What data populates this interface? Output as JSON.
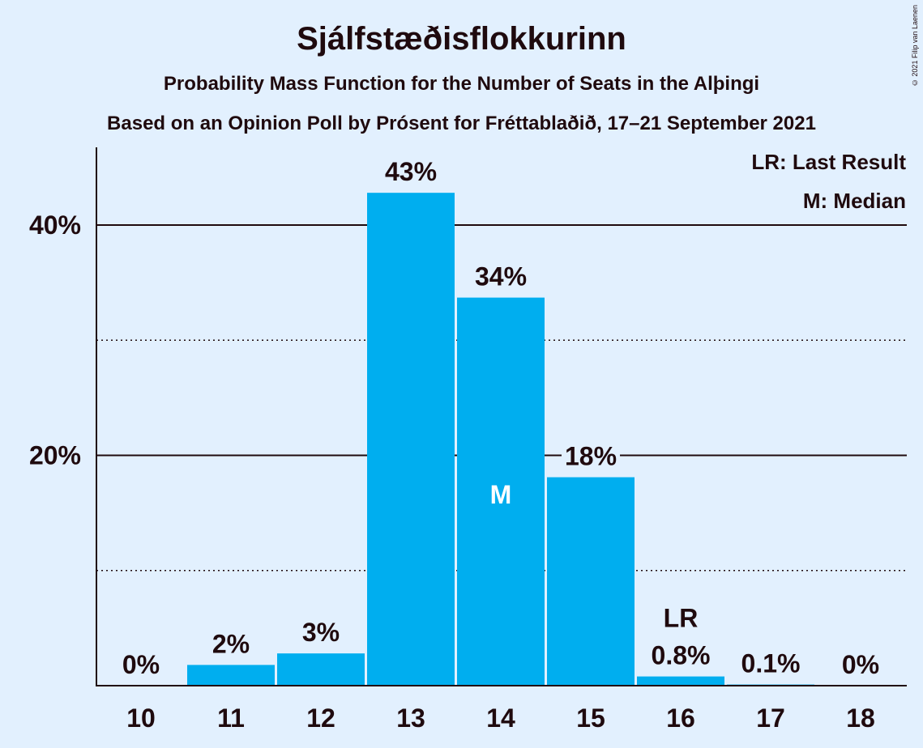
{
  "chart_data": {
    "type": "bar",
    "title": "Sjálfstæðisflokkurinn",
    "subtitle": "Probability Mass Function for the Number of Seats in the Alþingi",
    "subtitle2": "Based on an Opinion Poll by Prósent for Fréttablaðið, 17–21 September 2021",
    "copyright": "© 2021 Filip van Laenen",
    "categories": [
      "10",
      "11",
      "12",
      "13",
      "14",
      "15",
      "16",
      "17",
      "18"
    ],
    "values": [
      0,
      1.8,
      2.8,
      42.8,
      33.7,
      18.1,
      0.8,
      0.1,
      0
    ],
    "value_labels": [
      "0%",
      "2%",
      "3%",
      "43%",
      "34%",
      "18%",
      "0.8%",
      "0.1%",
      "0%"
    ],
    "ylim": [
      0,
      47
    ],
    "yticks": [
      {
        "value": 20,
        "label": "20%"
      },
      {
        "value": 40,
        "label": "40%"
      }
    ],
    "minor_gridlines": [
      10,
      30
    ],
    "median_category": "14",
    "median_marker": "M",
    "last_result_category": "16",
    "last_result_marker": "LR",
    "legend": [
      "LR: Last Result",
      "M: Median"
    ],
    "legend_position": "top-right",
    "bar_color": "#00aeef",
    "background_color": "#e2f0fe"
  }
}
